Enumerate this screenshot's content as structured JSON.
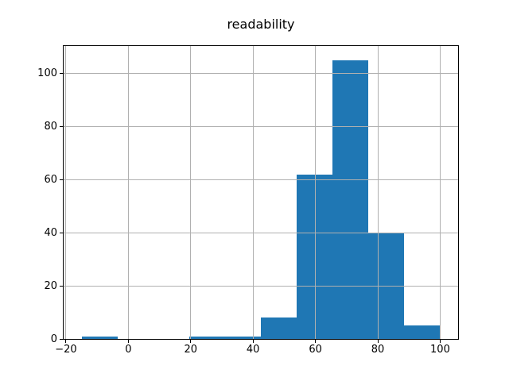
{
  "chart_data": {
    "type": "bar",
    "subtype": "histogram",
    "title": "readability",
    "xlabel": "",
    "ylabel": "",
    "bin_edges": [
      -15,
      -3.5,
      8,
      19.5,
      31,
      42.5,
      54,
      65.5,
      77,
      88.5,
      100
    ],
    "counts": [
      1,
      0,
      0,
      1,
      1,
      8,
      62,
      105,
      40,
      5
    ],
    "total_count": 223,
    "xlim": [
      -20.75,
      105.75
    ],
    "ylim": [
      0,
      110.25
    ],
    "x_ticks": [
      -20,
      0,
      20,
      40,
      60,
      80,
      100
    ],
    "x_tick_labels": [
      "−20",
      "0",
      "20",
      "40",
      "60",
      "80",
      "100"
    ],
    "y_ticks": [
      0,
      20,
      40,
      60,
      80,
      100
    ],
    "y_tick_labels": [
      "0",
      "20",
      "40",
      "60",
      "80",
      "100"
    ],
    "bar_color": "#1f77b4",
    "grid_color": "#b0b0b0",
    "axis_color": "#000000",
    "background_color": "#ffffff",
    "grid": "on",
    "grid_above_bars": true,
    "legend": "none"
  }
}
